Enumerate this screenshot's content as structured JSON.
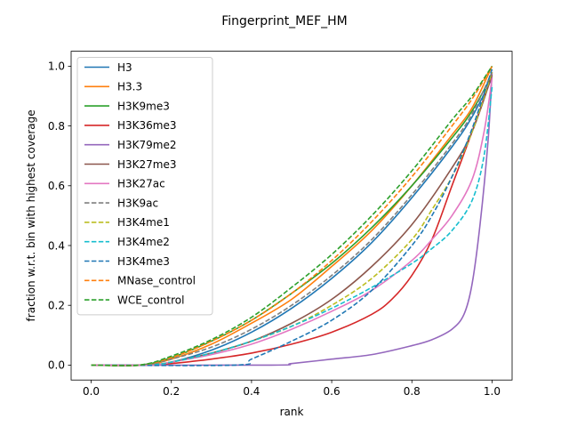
{
  "chart_data": {
    "type": "line",
    "title": "Fingerprint_MEF_HM",
    "xlabel": "rank",
    "ylabel": "fraction w.r.t. bin with highest coverage",
    "xlim": [
      -0.05,
      1.05
    ],
    "ylim": [
      -0.05,
      1.05
    ],
    "xticks": [
      "0.0",
      "0.2",
      "0.4",
      "0.6",
      "0.8",
      "1.0"
    ],
    "yticks": [
      "0.0",
      "0.2",
      "0.4",
      "0.6",
      "0.8",
      "1.0"
    ],
    "grid": false,
    "legend_position": "top-left",
    "series": [
      {
        "name": "H3",
        "color": "#1f77b4",
        "dash": false,
        "points": [
          [
            0,
            0
          ],
          [
            0.14,
            0
          ],
          [
            0.2,
            0.01
          ],
          [
            0.3,
            0.05
          ],
          [
            0.4,
            0.11
          ],
          [
            0.5,
            0.19
          ],
          [
            0.6,
            0.29
          ],
          [
            0.7,
            0.41
          ],
          [
            0.8,
            0.56
          ],
          [
            0.9,
            0.73
          ],
          [
            0.95,
            0.83
          ],
          [
            1.0,
            0.96
          ]
        ]
      },
      {
        "name": "H3.3",
        "color": "#ff7f0e",
        "dash": false,
        "points": [
          [
            0,
            0
          ],
          [
            0.13,
            0
          ],
          [
            0.2,
            0.02
          ],
          [
            0.3,
            0.07
          ],
          [
            0.4,
            0.14
          ],
          [
            0.5,
            0.22
          ],
          [
            0.6,
            0.33
          ],
          [
            0.7,
            0.45
          ],
          [
            0.8,
            0.6
          ],
          [
            0.9,
            0.77
          ],
          [
            0.95,
            0.86
          ],
          [
            1.0,
            1.0
          ]
        ]
      },
      {
        "name": "H3K9me3",
        "color": "#2ca02c",
        "dash": false,
        "points": [
          [
            0,
            0
          ],
          [
            0.12,
            0
          ],
          [
            0.2,
            0.025
          ],
          [
            0.3,
            0.08
          ],
          [
            0.4,
            0.15
          ],
          [
            0.5,
            0.24
          ],
          [
            0.6,
            0.34
          ],
          [
            0.7,
            0.46
          ],
          [
            0.8,
            0.6
          ],
          [
            0.9,
            0.76
          ],
          [
            0.95,
            0.85
          ],
          [
            1.0,
            0.97
          ]
        ]
      },
      {
        "name": "H3K36me3",
        "color": "#d62728",
        "dash": false,
        "points": [
          [
            0,
            0
          ],
          [
            0.15,
            0
          ],
          [
            0.2,
            0.005
          ],
          [
            0.3,
            0.02
          ],
          [
            0.4,
            0.04
          ],
          [
            0.5,
            0.07
          ],
          [
            0.6,
            0.11
          ],
          [
            0.7,
            0.17
          ],
          [
            0.75,
            0.22
          ],
          [
            0.8,
            0.3
          ],
          [
            0.85,
            0.42
          ],
          [
            0.9,
            0.6
          ],
          [
            0.95,
            0.78
          ],
          [
            1.0,
            0.97
          ]
        ]
      },
      {
        "name": "H3K79me2",
        "color": "#9467bd",
        "dash": false,
        "points": [
          [
            0,
            0
          ],
          [
            0.45,
            0
          ],
          [
            0.5,
            0.005
          ],
          [
            0.6,
            0.02
          ],
          [
            0.7,
            0.035
          ],
          [
            0.8,
            0.065
          ],
          [
            0.85,
            0.085
          ],
          [
            0.9,
            0.12
          ],
          [
            0.93,
            0.17
          ],
          [
            0.95,
            0.27
          ],
          [
            0.97,
            0.47
          ],
          [
            0.99,
            0.75
          ],
          [
            1.0,
            0.98
          ]
        ]
      },
      {
        "name": "H3K27me3",
        "color": "#8c564b",
        "dash": false,
        "points": [
          [
            0,
            0
          ],
          [
            0.14,
            0
          ],
          [
            0.2,
            0.01
          ],
          [
            0.3,
            0.04
          ],
          [
            0.4,
            0.08
          ],
          [
            0.5,
            0.14
          ],
          [
            0.6,
            0.22
          ],
          [
            0.7,
            0.33
          ],
          [
            0.8,
            0.47
          ],
          [
            0.9,
            0.66
          ],
          [
            0.95,
            0.78
          ],
          [
            1.0,
            0.97
          ]
        ]
      },
      {
        "name": "H3K27ac",
        "color": "#e377c2",
        "dash": false,
        "points": [
          [
            0,
            0
          ],
          [
            0.15,
            0
          ],
          [
            0.2,
            0.01
          ],
          [
            0.3,
            0.035
          ],
          [
            0.4,
            0.07
          ],
          [
            0.5,
            0.12
          ],
          [
            0.6,
            0.18
          ],
          [
            0.7,
            0.25
          ],
          [
            0.8,
            0.35
          ],
          [
            0.85,
            0.42
          ],
          [
            0.9,
            0.5
          ],
          [
            0.95,
            0.62
          ],
          [
            0.98,
            0.78
          ],
          [
            1.0,
            0.96
          ]
        ]
      },
      {
        "name": "H3K9ac",
        "color": "#7f7f7f",
        "dash": true,
        "points": [
          [
            0,
            0
          ],
          [
            0.13,
            0
          ],
          [
            0.2,
            0.02
          ],
          [
            0.3,
            0.06
          ],
          [
            0.4,
            0.12
          ],
          [
            0.5,
            0.2
          ],
          [
            0.6,
            0.3
          ],
          [
            0.7,
            0.42
          ],
          [
            0.8,
            0.57
          ],
          [
            0.9,
            0.74
          ],
          [
            0.95,
            0.84
          ],
          [
            1.0,
            0.98
          ]
        ]
      },
      {
        "name": "H3K4me1",
        "color": "#bcbd22",
        "dash": true,
        "points": [
          [
            0,
            0
          ],
          [
            0.14,
            0
          ],
          [
            0.2,
            0.01
          ],
          [
            0.3,
            0.04
          ],
          [
            0.4,
            0.08
          ],
          [
            0.5,
            0.13
          ],
          [
            0.6,
            0.2
          ],
          [
            0.7,
            0.29
          ],
          [
            0.8,
            0.42
          ],
          [
            0.85,
            0.52
          ],
          [
            0.9,
            0.63
          ],
          [
            0.95,
            0.78
          ],
          [
            1.0,
            0.98
          ]
        ]
      },
      {
        "name": "H3K4me2",
        "color": "#17becf",
        "dash": true,
        "points": [
          [
            0,
            0
          ],
          [
            0.14,
            0
          ],
          [
            0.2,
            0.01
          ],
          [
            0.3,
            0.04
          ],
          [
            0.4,
            0.08
          ],
          [
            0.5,
            0.13
          ],
          [
            0.6,
            0.19
          ],
          [
            0.7,
            0.26
          ],
          [
            0.8,
            0.34
          ],
          [
            0.85,
            0.39
          ],
          [
            0.9,
            0.45
          ],
          [
            0.95,
            0.55
          ],
          [
            0.98,
            0.7
          ],
          [
            1.0,
            0.93
          ]
        ]
      },
      {
        "name": "H3K4me3",
        "color": "#1f77b4",
        "dash": true,
        "points": [
          [
            0,
            0
          ],
          [
            0.36,
            0
          ],
          [
            0.4,
            0.02
          ],
          [
            0.5,
            0.08
          ],
          [
            0.6,
            0.15
          ],
          [
            0.7,
            0.25
          ],
          [
            0.8,
            0.4
          ],
          [
            0.85,
            0.5
          ],
          [
            0.9,
            0.63
          ],
          [
            0.95,
            0.79
          ],
          [
            1.0,
            0.99
          ]
        ]
      },
      {
        "name": "MNase_control",
        "color": "#ff7f0e",
        "dash": true,
        "points": [
          [
            0,
            0
          ],
          [
            0.12,
            0
          ],
          [
            0.2,
            0.025
          ],
          [
            0.3,
            0.08
          ],
          [
            0.4,
            0.15
          ],
          [
            0.5,
            0.24
          ],
          [
            0.6,
            0.35
          ],
          [
            0.7,
            0.48
          ],
          [
            0.8,
            0.63
          ],
          [
            0.9,
            0.8
          ],
          [
            0.95,
            0.89
          ],
          [
            1.0,
            1.0
          ]
        ]
      },
      {
        "name": "WCE_control",
        "color": "#2ca02c",
        "dash": true,
        "points": [
          [
            0,
            0
          ],
          [
            0.12,
            0
          ],
          [
            0.2,
            0.03
          ],
          [
            0.3,
            0.085
          ],
          [
            0.4,
            0.16
          ],
          [
            0.5,
            0.26
          ],
          [
            0.6,
            0.37
          ],
          [
            0.7,
            0.5
          ],
          [
            0.8,
            0.65
          ],
          [
            0.9,
            0.82
          ],
          [
            0.95,
            0.9
          ],
          [
            1.0,
            1.0
          ]
        ]
      }
    ]
  }
}
